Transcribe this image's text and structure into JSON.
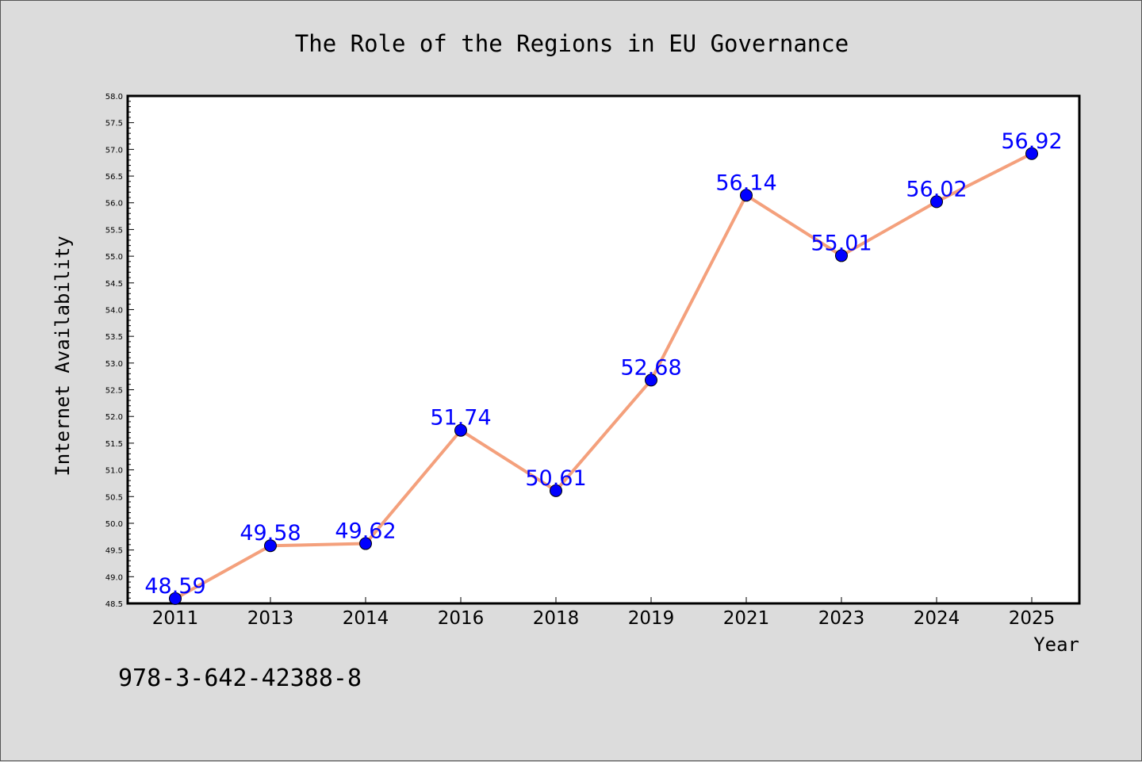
{
  "chart_data": {
    "type": "line",
    "title": "The Role of the Regions in EU Governance",
    "xlabel": "Year",
    "ylabel": "Internet Availability",
    "categories": [
      "2011",
      "2013",
      "2014",
      "2016",
      "2018",
      "2019",
      "2021",
      "2023",
      "2024",
      "2025"
    ],
    "series": [
      {
        "values": [
          48.59,
          49.58,
          49.62,
          51.74,
          50.61,
          52.68,
          56.14,
          55.01,
          56.02,
          56.92
        ],
        "labels": [
          "48.59",
          "49.58",
          "49.62",
          "51.74",
          "50.61",
          "52.68",
          "56.14",
          "55.01",
          "56.02",
          "56.92"
        ],
        "line_color": "#f4a07c",
        "marker_color": "#0000ff"
      }
    ],
    "ylim": [
      48.5,
      58.0
    ],
    "yticks": [
      "48.5",
      "49.0",
      "49.5",
      "50.0",
      "50.5",
      "51.0",
      "51.5",
      "52.0",
      "52.5",
      "53.0",
      "53.5",
      "54.0",
      "54.5",
      "55.0",
      "55.5",
      "56.0",
      "56.5",
      "57.0",
      "57.5",
      "58.0"
    ],
    "label_color": "#0000ff",
    "grid": false,
    "legend": "none"
  },
  "footer_text": "978-3-642-42388-8"
}
